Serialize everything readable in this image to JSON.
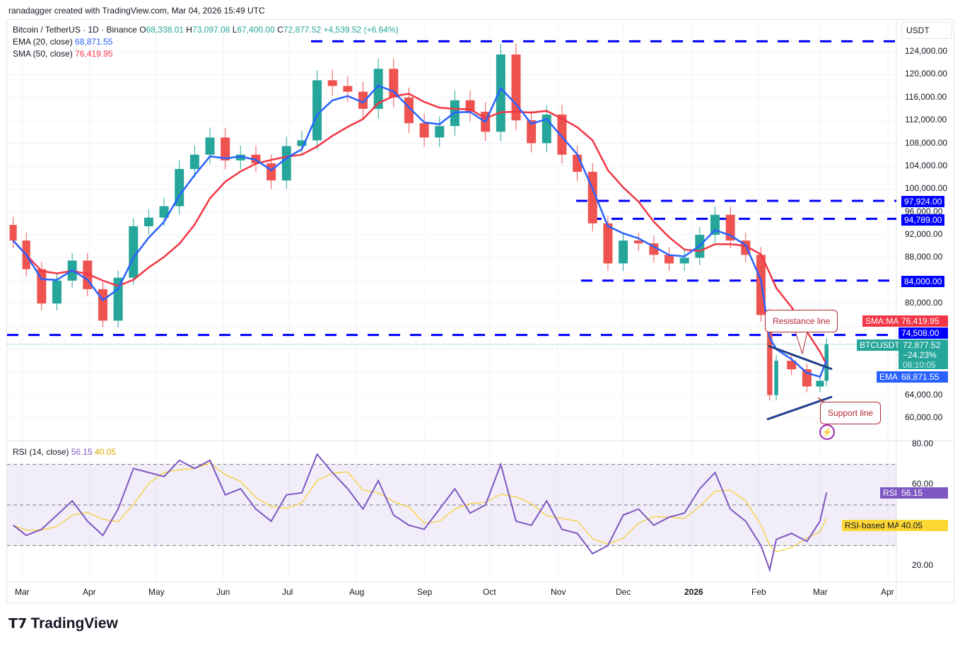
{
  "credit": "ranadagger created with TradingView.com, Mar 04, 2026 15:49 UTC",
  "legend": {
    "symbol": "Bitcoin / TetherUS · 1D · Binance",
    "o_label": "O",
    "o": "68,338.01",
    "h_label": "H",
    "h": "73,097.08",
    "l_label": "L",
    "l": "67,400.00",
    "c_label": "C",
    "c": "72,877.52",
    "change": "+4,539.52 (+6.64%)",
    "ema_label": "EMA (20, close)",
    "ema": "68,871.55",
    "sma_label": "SMA (50, close)",
    "sma": "76,419.95",
    "rsi_label": "RSI (14, close)",
    "rsi": "56.15",
    "rsi_ma": "40.05"
  },
  "currency": "USDT",
  "price_ticks": [
    "124,000.00",
    "120,000.00",
    "116,000.00",
    "112,000.00",
    "108,000.00",
    "104,000.00",
    "100,000.00",
    "96,000.00",
    "92,000.00",
    "88,000.00",
    "80,000.00",
    "64,000.00",
    "60,000.00"
  ],
  "rsi_ticks": [
    "80.00",
    "60.00",
    "20.00"
  ],
  "time_ticks": [
    "Mar",
    "Apr",
    "May",
    "Jun",
    "Jul",
    "Aug",
    "Sep",
    "Oct",
    "Nov",
    "Dec",
    "2026",
    "Feb",
    "Mar",
    "Apr"
  ],
  "tags": {
    "level_97924": "97,924.00",
    "level_94789": "94,789.00",
    "level_84000": "84,000.00",
    "sma_name": "SMA:MA",
    "sma_value": "76,419.95",
    "level_74508": "74,508.00",
    "symbol": "BTCUSDT",
    "price": "72,877.52",
    "pct": "−24.23%",
    "countdown": "08:10:05",
    "ema_name": "EMA",
    "ema_value": "68,871.55",
    "rsi_name": "RSI",
    "rsi_value": "56.15",
    "rsi_ma_name": "RSI-based MA",
    "rsi_ma_value": "40.05"
  },
  "annotations": {
    "resistance": "Resistance line",
    "support": "Support line"
  },
  "brand": "TradingView",
  "colors": {
    "up": "#26a69a",
    "down": "#ef5350",
    "ema": "#2962ff",
    "sma": "#f23645",
    "level": "#0000ff",
    "rsi": "#7e57c2",
    "rsi_ma": "#f7c600",
    "trend": "#1e3f8a"
  },
  "chart_data": {
    "type": "candlestick",
    "title": "Bitcoin / TetherUS · 1D · Binance",
    "ylim": [
      56000,
      127000
    ],
    "levels": [
      125800,
      97924,
      94789,
      84000,
      74508
    ],
    "dates": [
      "2025-02-25",
      "2025-03-03",
      "2025-03-10",
      "2025-03-17",
      "2025-03-24",
      "2025-03-31",
      "2025-04-07",
      "2025-04-14",
      "2025-04-21",
      "2025-04-28",
      "2025-05-05",
      "2025-05-12",
      "2025-05-19",
      "2025-05-26",
      "2025-06-02",
      "2025-06-09",
      "2025-06-16",
      "2025-06-23",
      "2025-06-30",
      "2025-07-07",
      "2025-07-14",
      "2025-07-21",
      "2025-07-28",
      "2025-08-04",
      "2025-08-11",
      "2025-08-18",
      "2025-08-25",
      "2025-09-01",
      "2025-09-08",
      "2025-09-15",
      "2025-09-22",
      "2025-09-29",
      "2025-10-06",
      "2025-10-13",
      "2025-10-20",
      "2025-10-27",
      "2025-11-03",
      "2025-11-10",
      "2025-11-17",
      "2025-11-24",
      "2025-12-01",
      "2025-12-08",
      "2025-12-15",
      "2025-12-22",
      "2025-12-29",
      "2026-01-05",
      "2026-01-12",
      "2026-01-19",
      "2026-01-26",
      "2026-02-02",
      "2026-02-06",
      "2026-02-09",
      "2026-02-16",
      "2026-02-23",
      "2026-03-01",
      "2026-03-04"
    ],
    "close": [
      91000,
      86000,
      80000,
      84000,
      87500,
      82500,
      77000,
      84500,
      93500,
      95000,
      97000,
      103500,
      106000,
      109000,
      105000,
      106000,
      104500,
      101500,
      107500,
      108500,
      119000,
      118000,
      117000,
      114000,
      121000,
      116000,
      111500,
      109000,
      111000,
      115500,
      113500,
      110000,
      123500,
      112000,
      108000,
      113000,
      106000,
      103000,
      94000,
      87000,
      91000,
      90500,
      88500,
      87000,
      88000,
      92000,
      95500,
      91000,
      88500,
      78000,
      64000,
      70000,
      68500,
      65500,
      66500,
      72877.52
    ],
    "rsi": [
      40,
      35,
      38,
      45,
      52,
      42,
      35,
      48,
      68,
      66,
      64,
      72,
      68,
      72,
      55,
      58,
      48,
      42,
      55,
      56,
      75,
      66,
      58,
      48,
      62,
      45,
      40,
      38,
      48,
      58,
      46,
      50,
      70,
      42,
      40,
      52,
      38,
      36,
      26,
      30,
      45,
      48,
      40,
      44,
      46,
      58,
      66,
      48,
      42,
      30,
      18,
      33,
      36,
      32,
      42,
      56.15
    ],
    "rsi_range": [
      10,
      85
    ],
    "rsi_bands": [
      30,
      50,
      70
    ]
  }
}
